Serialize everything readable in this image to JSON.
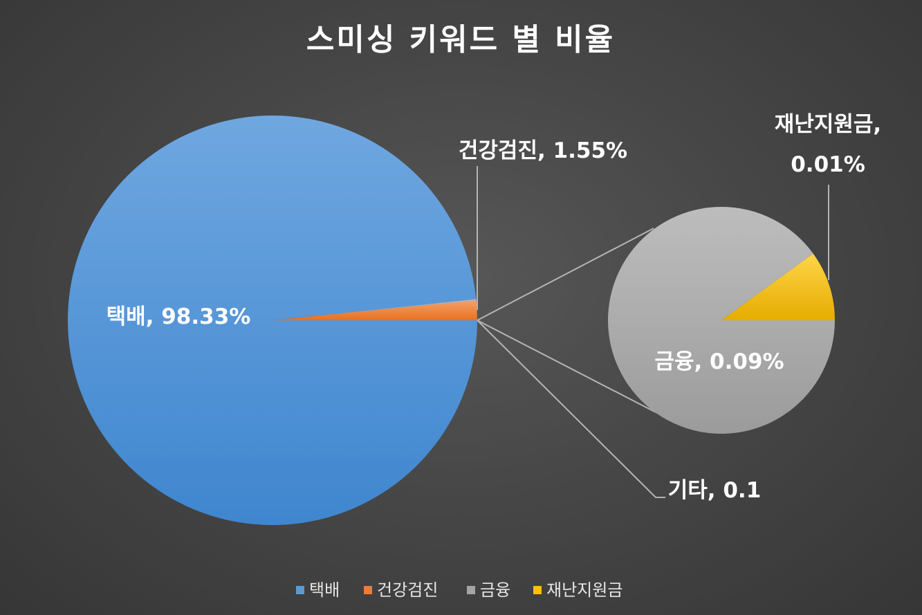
{
  "chart_data": {
    "type": "bar-of-pie",
    "title": "스미싱 키워드 별 비율",
    "slices": [
      {
        "name": "택배",
        "value": 98.33,
        "color": "#4a90d9",
        "label_text": "택배, 98.33%"
      },
      {
        "name": "건강검진",
        "value": 1.55,
        "color": "#ed7d31",
        "label_text": "건강검진, 1.55%"
      },
      {
        "name": "기타",
        "value": 0.1,
        "color": "#a5a5a5",
        "label_text": "기타, 0.1"
      }
    ],
    "secondary_pie": [
      {
        "name": "금융",
        "value": 0.09,
        "color": "#a5a5a5",
        "label_text": "금융, 0.09%"
      },
      {
        "name": "재난지원금",
        "value": 0.01,
        "color": "#ffc000",
        "label_text_line1": "재난지원금,",
        "label_text_line2": "0.01%"
      }
    ],
    "legend": {
      "position": "bottom",
      "entries": [
        {
          "name": "택배",
          "color": "#5b9bd5"
        },
        {
          "name": "건강검진",
          "color": "#ed7d31"
        },
        {
          "name": "금융",
          "color": "#a5a5a5"
        },
        {
          "name": "재난지원금",
          "color": "#ffc000"
        }
      ]
    }
  }
}
